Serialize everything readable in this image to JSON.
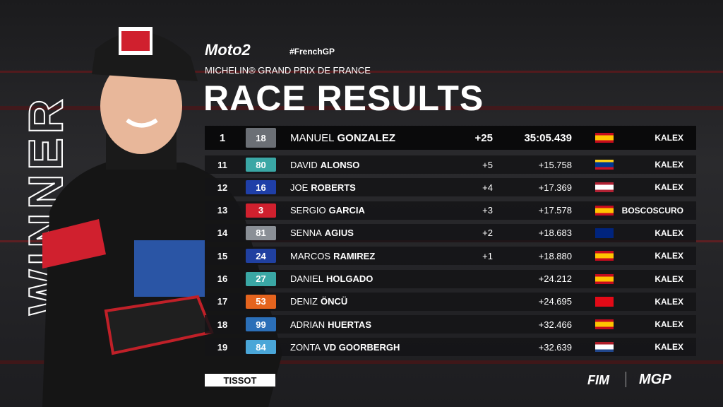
{
  "header": {
    "series": "Moto2",
    "hashtag": "#FrenchGP",
    "event": "MICHELIN® GRAND PRIX DE FRANCE",
    "title": "RACE RESULTS"
  },
  "side_text": "WINNER",
  "results": {
    "rows": [
      {
        "position": 1,
        "number": 18,
        "first_name": "MANUEL",
        "last_name": "GONZALEZ",
        "points": "+25",
        "time": "35:05.439",
        "team": "KALEX",
        "color": "#6b6f75"
      },
      {
        "position": 11,
        "number": 80,
        "first_name": "DAVID",
        "last_name": "ALONSO",
        "points": "+5",
        "time": "+15.758",
        "team": "KALEX",
        "color": "#3aa7a5"
      },
      {
        "position": 12,
        "number": 16,
        "first_name": "JOE",
        "last_name": "ROBERTS",
        "points": "+4",
        "time": "+17.369",
        "team": "KALEX",
        "color": "#1f3fa8"
      },
      {
        "position": 13,
        "number": 3,
        "first_name": "SERGIO",
        "last_name": "GARCIA",
        "points": "+3",
        "time": "+17.578",
        "team": "BOSCOSCURO",
        "color": "#d0202e"
      },
      {
        "position": 14,
        "number": 81,
        "first_name": "SENNA",
        "last_name": "AGIUS",
        "points": "+2",
        "time": "+18.683",
        "team": "KALEX",
        "color": "#8a8f96"
      },
      {
        "position": 15,
        "number": 24,
        "first_name": "MARCOS",
        "last_name": "RAMIREZ",
        "points": "+1",
        "time": "+18.880",
        "team": "KALEX",
        "color": "#2040a0"
      },
      {
        "position": 16,
        "number": 27,
        "first_name": "DANIEL",
        "last_name": "HOLGADO",
        "time": "+24.212",
        "team": "KALEX",
        "color": "#3aa7a5"
      },
      {
        "position": 17,
        "number": 53,
        "first_name": "DENIZ",
        "last_name": "ÖNCÜ",
        "time": "+24.695",
        "team": "KALEX",
        "color": "#e5641e"
      },
      {
        "position": 18,
        "number": 99,
        "first_name": "ADRIAN",
        "last_name": "HUERTAS",
        "time": "+32.466",
        "team": "KALEX",
        "color": "#2b6fb8"
      },
      {
        "position": 19,
        "number": 84,
        "first_name": "ZONTA",
        "last_name": "VD GOORBERGH",
        "time": "+32.639",
        "team": "KALEX",
        "color": "#4aa6d8"
      }
    ]
  },
  "footer": {
    "sponsor": "TISSOT",
    "federation": "FIM",
    "brand": "MGP"
  }
}
